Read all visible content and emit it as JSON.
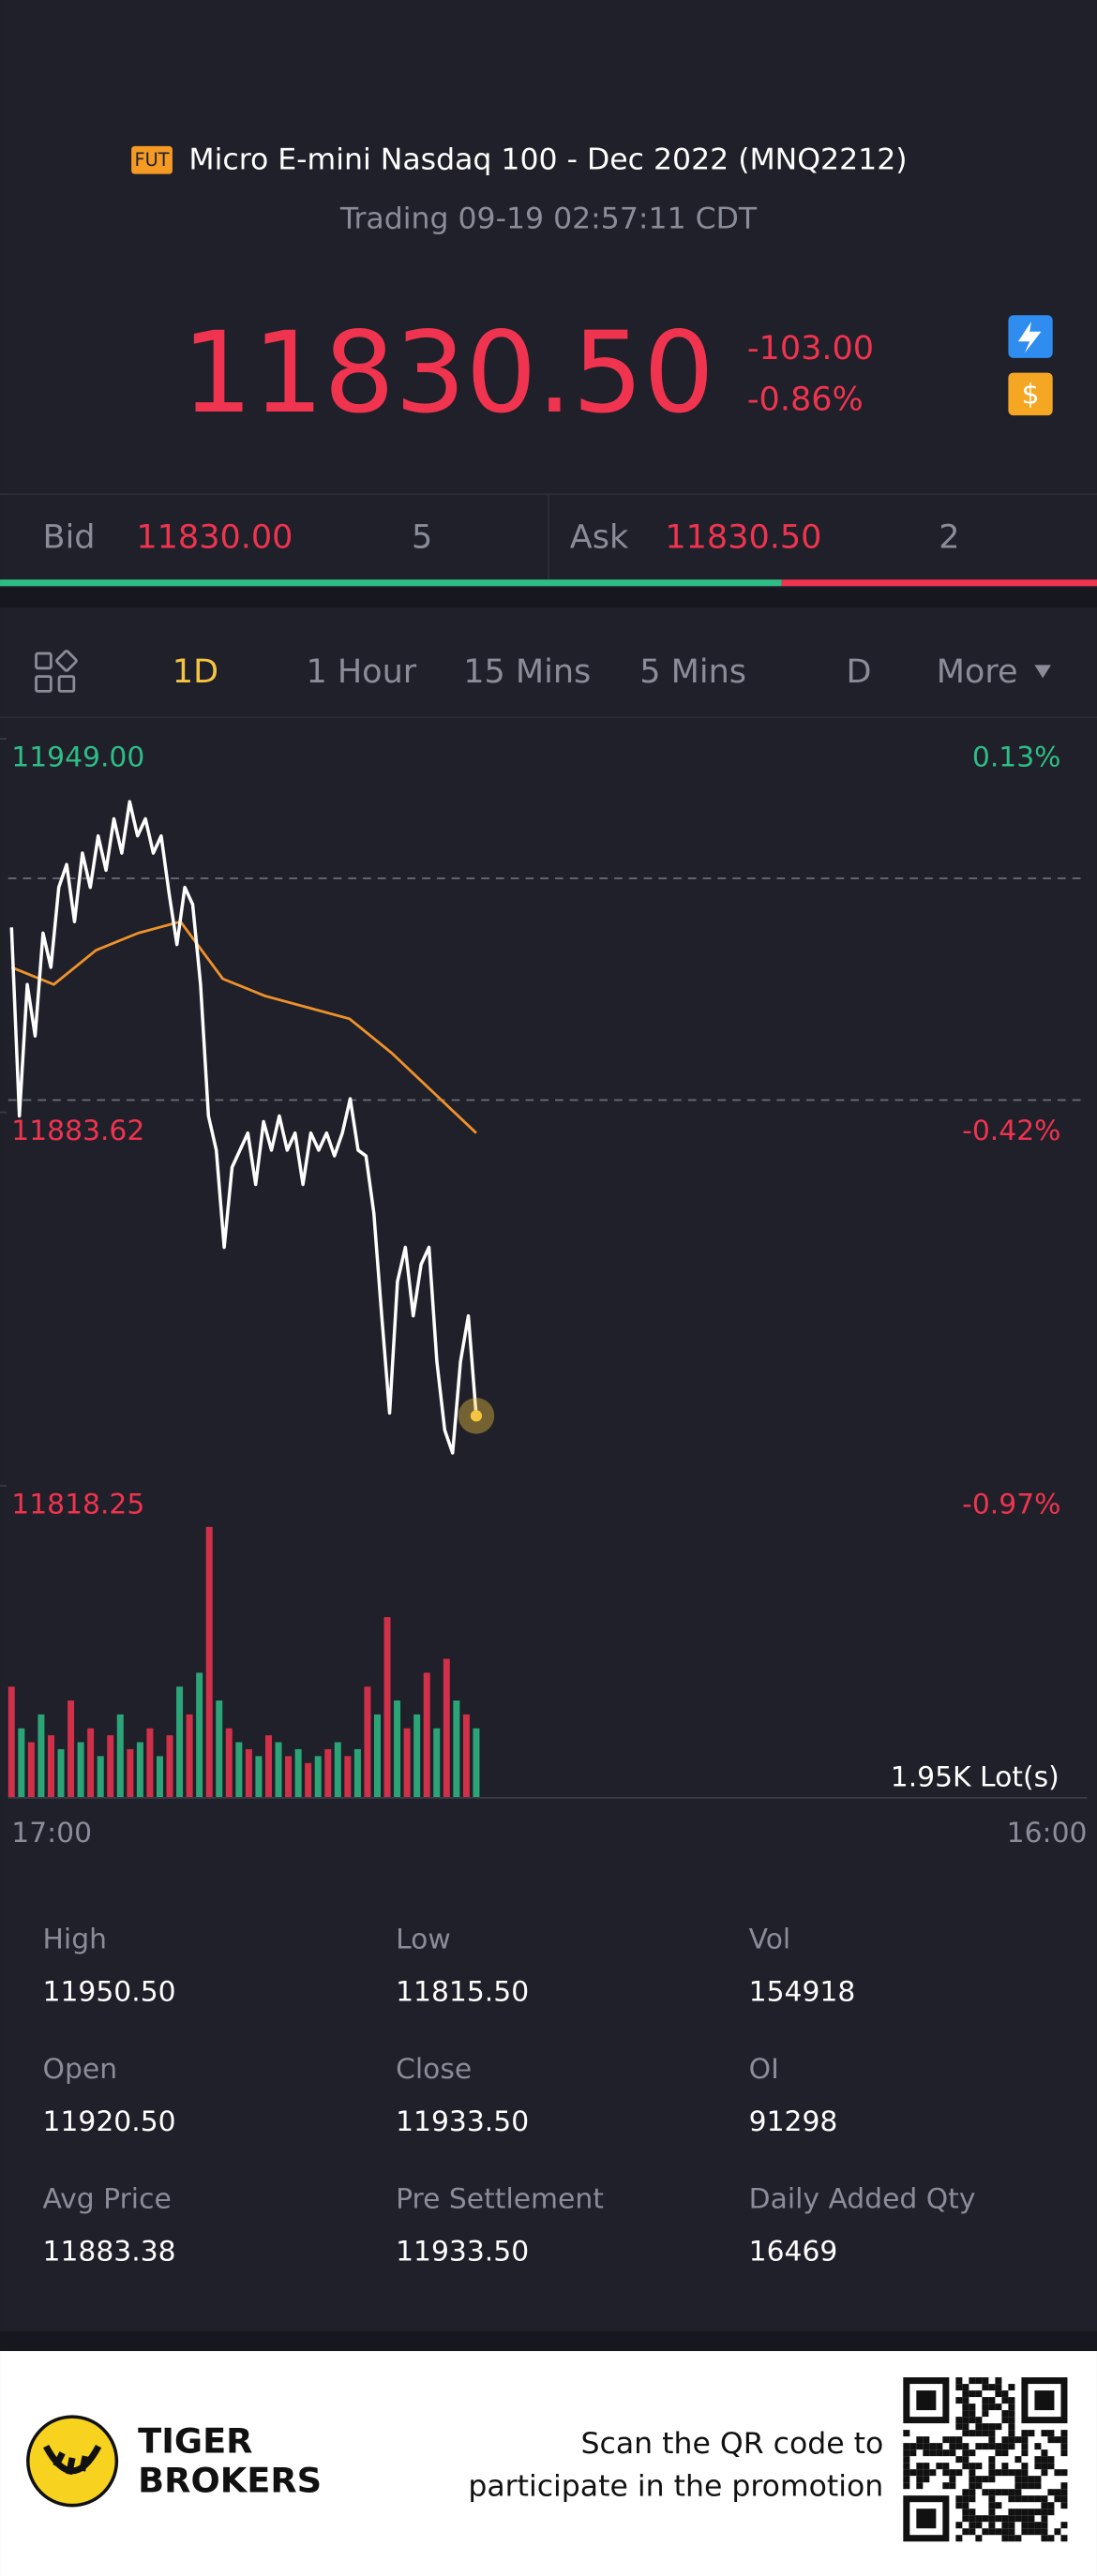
{
  "header": {
    "badge": "FUT",
    "title": "Micro E-mini Nasdaq 100 - Dec 2022 (MNQ2212)",
    "status": "Trading 09-19 02:57:11 CDT"
  },
  "quote": {
    "price": "11830.50",
    "change": "-103.00",
    "change_pct": "-0.86%"
  },
  "order_book": {
    "bid_label": "Bid",
    "bid_price": "11830.00",
    "bid_size": "5",
    "ask_label": "Ask",
    "ask_price": "11830.50",
    "ask_size": "2"
  },
  "tabs": [
    "1D",
    "1 Hour",
    "15 Mins",
    "5 Mins",
    "D",
    "More"
  ],
  "chart_data": {
    "type": "line",
    "ylim": [
      11818.25,
      11949
    ],
    "yticks": [
      {
        "value": 11949,
        "label": "11949.00"
      },
      {
        "value": 11883.62,
        "label": "11883.62"
      },
      {
        "value": 11818.25,
        "label": "11818.25"
      }
    ],
    "y_pct_labels": [
      "0.13%",
      "-0.42%",
      "-0.97%"
    ],
    "series": [
      {
        "color": "#ffffff",
        "values": [
          11916,
          11883,
          11906,
          11897,
          11915,
          11909,
          11923,
          11927,
          11917,
          11929,
          11923,
          11932,
          11926,
          11935,
          11929,
          11938,
          11932,
          11935,
          11929,
          11932,
          11922,
          11913,
          11923,
          11920,
          11906,
          11883,
          11877,
          11860,
          11874,
          11877,
          11880,
          11871,
          11882,
          11877,
          11883,
          11877,
          11880,
          11871,
          11880,
          11877,
          11880,
          11876,
          11880,
          11886,
          11877,
          11876,
          11866,
          11848,
          11831,
          11854,
          11860,
          11848,
          11857,
          11860,
          11840,
          11828,
          11824,
          11840,
          11848,
          11830.5
        ]
      },
      {
        "color": "#f0922b",
        "values": [
          11909,
          11906,
          11912,
          11915,
          11917,
          11907,
          11904,
          11902,
          11900,
          11894,
          11887,
          11880
        ]
      }
    ],
    "volume": {
      "label": "1.95K Lot(s)",
      "ylim": [
        0,
        1950
      ],
      "colors": [
        "#f0344f",
        "#2ebd85"
      ],
      "values": [
        800,
        500,
        400,
        600,
        450,
        350,
        700,
        400,
        500,
        300,
        450,
        600,
        350,
        400,
        500,
        300,
        450,
        800,
        600,
        900,
        1950,
        700,
        500,
        400,
        350,
        300,
        450,
        400,
        300,
        350,
        250,
        300,
        350,
        400,
        300,
        350,
        800,
        600,
        1300,
        700,
        500,
        600,
        900,
        500,
        1000,
        700,
        600,
        500
      ]
    },
    "time_labels": [
      "17:00",
      "16:00"
    ]
  },
  "stats": [
    {
      "label": "High",
      "value": "11950.50"
    },
    {
      "label": "Low",
      "value": "11815.50"
    },
    {
      "label": "Vol",
      "value": "154918"
    },
    {
      "label": "Open",
      "value": "11920.50"
    },
    {
      "label": "Close",
      "value": "11933.50"
    },
    {
      "label": "OI",
      "value": "91298"
    },
    {
      "label": "Avg Price",
      "value": "11883.38"
    },
    {
      "label": "Pre Settlement",
      "value": "11933.50"
    },
    {
      "label": "Daily Added Qty",
      "value": "16469"
    }
  ],
  "footer": {
    "brand_line1": "TIGER",
    "brand_line2": "BROKERS",
    "promo_line1": "Scan the QR code to",
    "promo_line2": "participate in the promotion"
  }
}
